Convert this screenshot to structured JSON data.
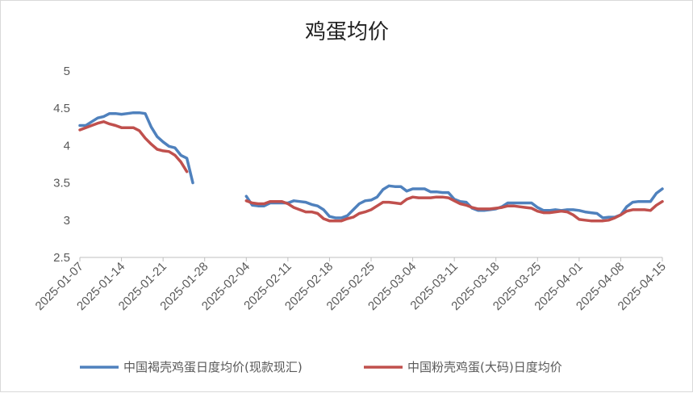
{
  "chart_data": {
    "type": "line",
    "title": "鸡蛋均价",
    "xlabel": "",
    "ylabel": "",
    "ylim": [
      2.5,
      5
    ],
    "yticks": [
      "2.5",
      "3",
      "3.5",
      "4",
      "4.5",
      "5"
    ],
    "x_start": "2025-01-07",
    "x_end": "2025-04-15",
    "xticks": [
      "2025-01-07",
      "2025-01-14",
      "2025-01-21",
      "2025-01-28",
      "2025-02-04",
      "2025-02-11",
      "2025-02-18",
      "2025-02-25",
      "2025-03-04",
      "2025-03-11",
      "2025-03-18",
      "2025-03-25",
      "2025-04-01",
      "2025-04-08",
      "2025-04-15"
    ],
    "grid": false,
    "legend": "bottom",
    "series": [
      {
        "name": "中国褐壳鸡蛋日度均价(现款现汇)",
        "color": "#4f81bd",
        "points": [
          [
            "2025-01-07",
            4.27
          ],
          [
            "2025-01-08",
            4.27
          ],
          [
            "2025-01-09",
            4.32
          ],
          [
            "2025-01-10",
            4.37
          ],
          [
            "2025-01-11",
            4.39
          ],
          [
            "2025-01-12",
            4.43
          ],
          [
            "2025-01-13",
            4.43
          ],
          [
            "2025-01-14",
            4.42
          ],
          [
            "2025-01-15",
            4.43
          ],
          [
            "2025-01-16",
            4.44
          ],
          [
            "2025-01-17",
            4.44
          ],
          [
            "2025-01-18",
            4.43
          ],
          [
            "2025-01-19",
            4.25
          ],
          [
            "2025-01-20",
            4.12
          ],
          [
            "2025-01-21",
            4.05
          ],
          [
            "2025-01-22",
            3.99
          ],
          [
            "2025-01-23",
            3.97
          ],
          [
            "2025-01-24",
            3.87
          ],
          [
            "2025-01-25",
            3.83
          ],
          [
            "2025-01-26",
            3.5
          ],
          [
            "2025-02-04",
            3.32
          ],
          [
            "2025-02-05",
            3.2
          ],
          [
            "2025-02-06",
            3.19
          ],
          [
            "2025-02-07",
            3.19
          ],
          [
            "2025-02-08",
            3.23
          ],
          [
            "2025-02-09",
            3.23
          ],
          [
            "2025-02-10",
            3.23
          ],
          [
            "2025-02-11",
            3.23
          ],
          [
            "2025-02-12",
            3.26
          ],
          [
            "2025-02-13",
            3.25
          ],
          [
            "2025-02-14",
            3.24
          ],
          [
            "2025-02-15",
            3.21
          ],
          [
            "2025-02-16",
            3.19
          ],
          [
            "2025-02-17",
            3.14
          ],
          [
            "2025-02-18",
            3.05
          ],
          [
            "2025-02-19",
            3.03
          ],
          [
            "2025-02-20",
            3.03
          ],
          [
            "2025-02-21",
            3.06
          ],
          [
            "2025-02-22",
            3.14
          ],
          [
            "2025-02-23",
            3.22
          ],
          [
            "2025-02-24",
            3.26
          ],
          [
            "2025-02-25",
            3.27
          ],
          [
            "2025-02-26",
            3.31
          ],
          [
            "2025-02-27",
            3.41
          ],
          [
            "2025-02-28",
            3.46
          ],
          [
            "2025-03-01",
            3.45
          ],
          [
            "2025-03-02",
            3.45
          ],
          [
            "2025-03-03",
            3.39
          ],
          [
            "2025-03-04",
            3.42
          ],
          [
            "2025-03-05",
            3.42
          ],
          [
            "2025-03-06",
            3.42
          ],
          [
            "2025-03-07",
            3.38
          ],
          [
            "2025-03-08",
            3.38
          ],
          [
            "2025-03-09",
            3.37
          ],
          [
            "2025-03-10",
            3.37
          ],
          [
            "2025-03-11",
            3.28
          ],
          [
            "2025-03-12",
            3.25
          ],
          [
            "2025-03-13",
            3.24
          ],
          [
            "2025-03-14",
            3.16
          ],
          [
            "2025-03-15",
            3.13
          ],
          [
            "2025-03-16",
            3.13
          ],
          [
            "2025-03-17",
            3.14
          ],
          [
            "2025-03-18",
            3.15
          ],
          [
            "2025-03-19",
            3.18
          ],
          [
            "2025-03-20",
            3.23
          ],
          [
            "2025-03-21",
            3.23
          ],
          [
            "2025-03-22",
            3.23
          ],
          [
            "2025-03-23",
            3.23
          ],
          [
            "2025-03-24",
            3.23
          ],
          [
            "2025-03-25",
            3.17
          ],
          [
            "2025-03-26",
            3.13
          ],
          [
            "2025-03-27",
            3.13
          ],
          [
            "2025-03-28",
            3.14
          ],
          [
            "2025-03-29",
            3.13
          ],
          [
            "2025-03-30",
            3.14
          ],
          [
            "2025-03-31",
            3.14
          ],
          [
            "2025-04-01",
            3.13
          ],
          [
            "2025-04-02",
            3.11
          ],
          [
            "2025-04-03",
            3.1
          ],
          [
            "2025-04-04",
            3.09
          ],
          [
            "2025-04-05",
            3.03
          ],
          [
            "2025-04-06",
            3.04
          ],
          [
            "2025-04-07",
            3.04
          ],
          [
            "2025-04-08",
            3.07
          ],
          [
            "2025-04-09",
            3.18
          ],
          [
            "2025-04-10",
            3.24
          ],
          [
            "2025-04-11",
            3.25
          ],
          [
            "2025-04-12",
            3.25
          ],
          [
            "2025-04-13",
            3.25
          ],
          [
            "2025-04-14",
            3.36
          ],
          [
            "2025-04-15",
            3.42
          ]
        ]
      },
      {
        "name": "中国粉壳鸡蛋(大码)日度均价",
        "color": "#c0504d",
        "points": [
          [
            "2025-01-07",
            4.21
          ],
          [
            "2025-01-08",
            4.24
          ],
          [
            "2025-01-09",
            4.27
          ],
          [
            "2025-01-10",
            4.3
          ],
          [
            "2025-01-11",
            4.32
          ],
          [
            "2025-01-12",
            4.29
          ],
          [
            "2025-01-13",
            4.27
          ],
          [
            "2025-01-14",
            4.24
          ],
          [
            "2025-01-15",
            4.24
          ],
          [
            "2025-01-16",
            4.24
          ],
          [
            "2025-01-17",
            4.2
          ],
          [
            "2025-01-18",
            4.1
          ],
          [
            "2025-01-19",
            4.02
          ],
          [
            "2025-01-20",
            3.95
          ],
          [
            "2025-01-21",
            3.93
          ],
          [
            "2025-01-22",
            3.92
          ],
          [
            "2025-01-23",
            3.87
          ],
          [
            "2025-01-24",
            3.78
          ],
          [
            "2025-01-25",
            3.65
          ],
          [
            "2025-02-04",
            3.26
          ],
          [
            "2025-02-05",
            3.23
          ],
          [
            "2025-02-06",
            3.22
          ],
          [
            "2025-02-07",
            3.22
          ],
          [
            "2025-02-08",
            3.25
          ],
          [
            "2025-02-09",
            3.25
          ],
          [
            "2025-02-10",
            3.25
          ],
          [
            "2025-02-11",
            3.22
          ],
          [
            "2025-02-12",
            3.17
          ],
          [
            "2025-02-13",
            3.14
          ],
          [
            "2025-02-14",
            3.11
          ],
          [
            "2025-02-15",
            3.11
          ],
          [
            "2025-02-16",
            3.09
          ],
          [
            "2025-02-17",
            3.02
          ],
          [
            "2025-02-18",
            2.99
          ],
          [
            "2025-02-19",
            2.99
          ],
          [
            "2025-02-20",
            2.99
          ],
          [
            "2025-02-21",
            3.02
          ],
          [
            "2025-02-22",
            3.04
          ],
          [
            "2025-02-23",
            3.09
          ],
          [
            "2025-02-24",
            3.11
          ],
          [
            "2025-02-25",
            3.14
          ],
          [
            "2025-02-26",
            3.19
          ],
          [
            "2025-02-27",
            3.24
          ],
          [
            "2025-02-28",
            3.24
          ],
          [
            "2025-03-01",
            3.23
          ],
          [
            "2025-03-02",
            3.22
          ],
          [
            "2025-03-03",
            3.28
          ],
          [
            "2025-03-04",
            3.31
          ],
          [
            "2025-03-05",
            3.3
          ],
          [
            "2025-03-06",
            3.3
          ],
          [
            "2025-03-07",
            3.3
          ],
          [
            "2025-03-08",
            3.31
          ],
          [
            "2025-03-09",
            3.31
          ],
          [
            "2025-03-10",
            3.3
          ],
          [
            "2025-03-11",
            3.26
          ],
          [
            "2025-03-12",
            3.22
          ],
          [
            "2025-03-13",
            3.2
          ],
          [
            "2025-03-14",
            3.17
          ],
          [
            "2025-03-15",
            3.15
          ],
          [
            "2025-03-16",
            3.15
          ],
          [
            "2025-03-17",
            3.15
          ],
          [
            "2025-03-18",
            3.16
          ],
          [
            "2025-03-19",
            3.17
          ],
          [
            "2025-03-20",
            3.19
          ],
          [
            "2025-03-21",
            3.19
          ],
          [
            "2025-03-22",
            3.18
          ],
          [
            "2025-03-23",
            3.17
          ],
          [
            "2025-03-24",
            3.16
          ],
          [
            "2025-03-25",
            3.12
          ],
          [
            "2025-03-26",
            3.1
          ],
          [
            "2025-03-27",
            3.1
          ],
          [
            "2025-03-28",
            3.11
          ],
          [
            "2025-03-29",
            3.12
          ],
          [
            "2025-03-30",
            3.11
          ],
          [
            "2025-03-31",
            3.07
          ],
          [
            "2025-04-01",
            3.01
          ],
          [
            "2025-04-02",
            3.0
          ],
          [
            "2025-04-03",
            2.99
          ],
          [
            "2025-04-04",
            2.99
          ],
          [
            "2025-04-05",
            2.99
          ],
          [
            "2025-04-06",
            3.0
          ],
          [
            "2025-04-07",
            3.03
          ],
          [
            "2025-04-08",
            3.07
          ],
          [
            "2025-04-09",
            3.12
          ],
          [
            "2025-04-10",
            3.14
          ],
          [
            "2025-04-11",
            3.14
          ],
          [
            "2025-04-12",
            3.14
          ],
          [
            "2025-04-13",
            3.13
          ],
          [
            "2025-04-14",
            3.2
          ],
          [
            "2025-04-15",
            3.25
          ]
        ]
      }
    ]
  }
}
